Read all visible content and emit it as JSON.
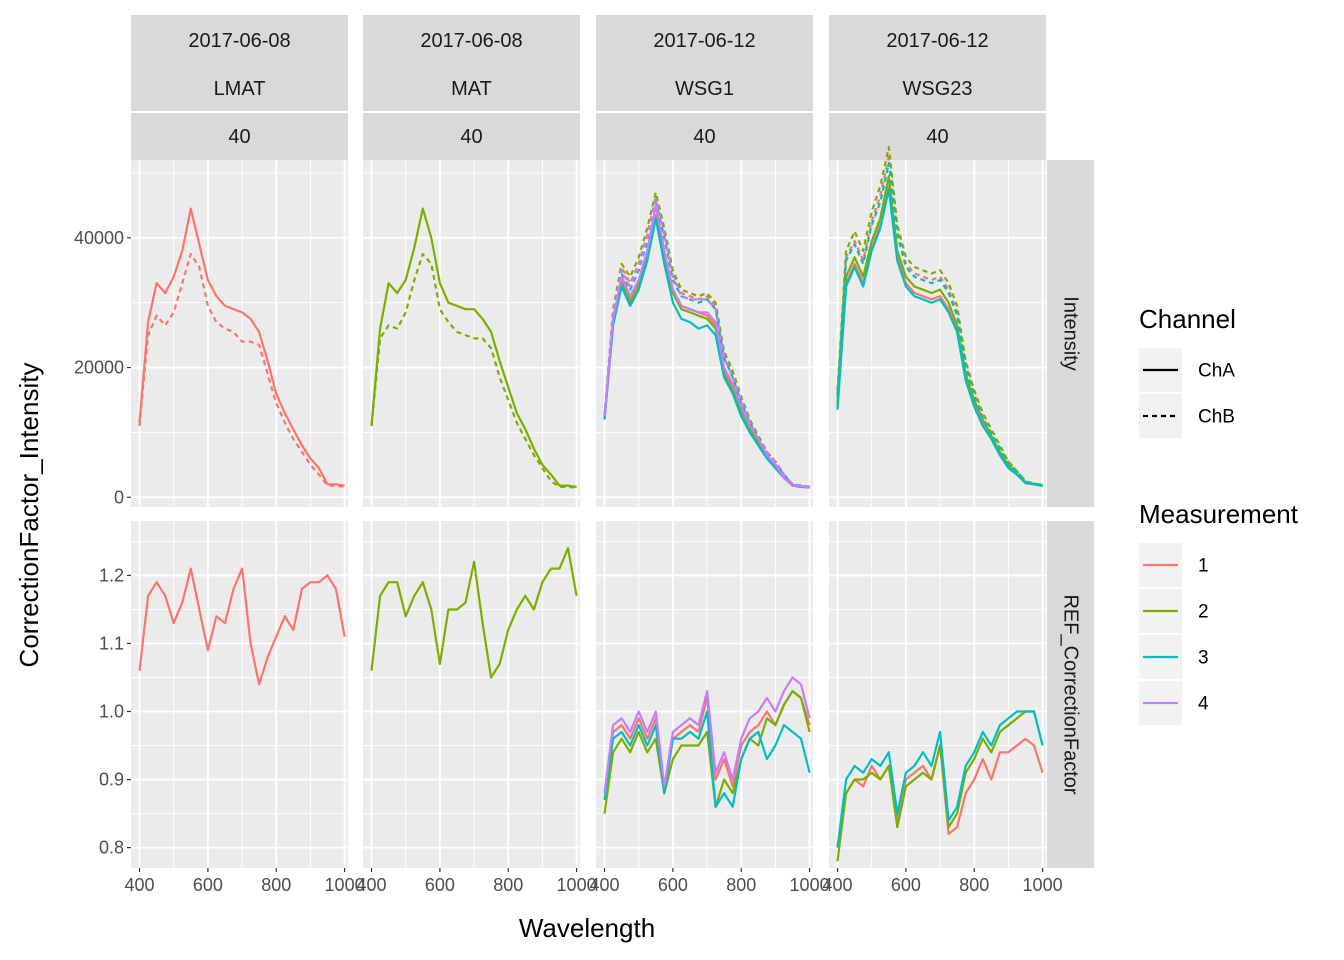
{
  "chart_data": {
    "type": "line",
    "xlabel": "Wavelength",
    "ylabel": "CorrectionFactor_Intensity",
    "x_ticks": [
      400,
      600,
      800,
      1000
    ],
    "x_tick_labels": [
      "400",
      "600",
      "800",
      "1000"
    ],
    "xlim": [
      375,
      1010
    ],
    "grid": true,
    "facet_columns": [
      {
        "date": "2017-06-08",
        "site": "LMAT",
        "value": "40"
      },
      {
        "date": "2017-06-08",
        "site": "MAT",
        "value": "40"
      },
      {
        "date": "2017-06-12",
        "site": "WSG1",
        "value": "40"
      },
      {
        "date": "2017-06-12",
        "site": "WSG23",
        "value": "40"
      }
    ],
    "facet_rows": [
      {
        "label": "Intensity",
        "ylim": [
          -1500,
          52000
        ],
        "ticks": [
          0,
          20000,
          40000
        ],
        "tick_labels": [
          "0",
          "20000",
          "40000"
        ]
      },
      {
        "label": "REF_CorrectionFactor",
        "ylim": [
          0.77,
          1.28
        ],
        "ticks": [
          0.8,
          0.9,
          1.0,
          1.1,
          1.2
        ],
        "tick_labels": [
          "0.8",
          "0.9",
          "1.0",
          "1.1",
          "1.2"
        ]
      }
    ],
    "x": [
      400,
      425,
      450,
      475,
      500,
      525,
      550,
      575,
      600,
      625,
      650,
      675,
      700,
      725,
      750,
      775,
      800,
      825,
      850,
      875,
      900,
      925,
      950,
      975,
      1000
    ],
    "legend": {
      "channel": {
        "title": "Channel",
        "entries": [
          {
            "label": "ChA",
            "dash": "solid"
          },
          {
            "label": "ChB",
            "dash": "dashed"
          }
        ]
      },
      "measurement": {
        "title": "Measurement",
        "entries": [
          {
            "label": "1",
            "color": "#F8766D"
          },
          {
            "label": "2",
            "color": "#7CAE00"
          },
          {
            "label": "3",
            "color": "#00BFC4"
          },
          {
            "label": "4",
            "color": "#C77CFF"
          }
        ]
      }
    },
    "series": [
      {
        "column": 0,
        "row": 0,
        "measurement": "1",
        "channel": "ChA",
        "values": [
          11500,
          27000,
          33000,
          31500,
          34000,
          38000,
          44500,
          39000,
          33500,
          31000,
          29500,
          29000,
          28500,
          27500,
          25500,
          21000,
          16000,
          13000,
          10500,
          8000,
          6000,
          4500,
          2000,
          2000,
          1800
        ]
      },
      {
        "column": 0,
        "row": 0,
        "measurement": "1",
        "channel": "ChB",
        "values": [
          11000,
          25000,
          28000,
          26500,
          28500,
          33000,
          37500,
          35500,
          29500,
          27000,
          26000,
          25500,
          24000,
          24000,
          23500,
          19000,
          14500,
          11500,
          9000,
          7000,
          5000,
          3500,
          1800,
          1800,
          1600
        ]
      },
      {
        "column": 0,
        "row": 1,
        "measurement": "1",
        "channel": "ChA",
        "values": [
          1.06,
          1.17,
          1.19,
          1.17,
          1.13,
          1.16,
          1.21,
          1.15,
          1.09,
          1.14,
          1.13,
          1.18,
          1.21,
          1.1,
          1.04,
          1.08,
          1.11,
          1.14,
          1.12,
          1.18,
          1.19,
          1.19,
          1.2,
          1.18,
          1.11
        ]
      },
      {
        "column": 1,
        "row": 0,
        "measurement": "2",
        "channel": "ChA",
        "values": [
          11000,
          26000,
          33000,
          31500,
          33500,
          38500,
          44500,
          40000,
          33000,
          30000,
          29500,
          29000,
          29000,
          27500,
          25500,
          21000,
          17000,
          13000,
          10500,
          7500,
          5000,
          3500,
          1800,
          1800,
          1600
        ]
      },
      {
        "column": 1,
        "row": 0,
        "measurement": "2",
        "channel": "ChB",
        "values": [
          11000,
          24500,
          26500,
          26000,
          28500,
          33500,
          37500,
          36000,
          29000,
          27000,
          25500,
          25000,
          24500,
          24500,
          23000,
          18500,
          15000,
          11500,
          9000,
          6500,
          4500,
          2500,
          1600,
          1600,
          1500
        ]
      },
      {
        "column": 1,
        "row": 1,
        "measurement": "2",
        "channel": "ChA",
        "values": [
          1.06,
          1.17,
          1.19,
          1.19,
          1.14,
          1.17,
          1.19,
          1.15,
          1.07,
          1.15,
          1.15,
          1.16,
          1.22,
          1.13,
          1.05,
          1.07,
          1.12,
          1.15,
          1.17,
          1.15,
          1.19,
          1.21,
          1.21,
          1.24,
          1.17
        ]
      },
      {
        "column": 2,
        "row": 0,
        "measurement": "1",
        "channel": "ChA",
        "values": [
          12000,
          27000,
          33500,
          30500,
          33000,
          37000,
          43500,
          37500,
          32000,
          29500,
          29000,
          28500,
          28000,
          26500,
          19500,
          17000,
          13500,
          10500,
          8500,
          6500,
          5000,
          3000,
          1800,
          1700,
          1500
        ]
      },
      {
        "column": 2,
        "row": 0,
        "measurement": "1",
        "channel": "ChB",
        "values": [
          12500,
          28500,
          35500,
          33000,
          36000,
          40500,
          46500,
          41000,
          34500,
          31500,
          31000,
          30500,
          31000,
          29500,
          22000,
          19000,
          15000,
          11500,
          9500,
          7000,
          5500,
          3500,
          2000,
          1800,
          1600
        ]
      },
      {
        "column": 2,
        "row": 0,
        "measurement": "2",
        "channel": "ChA",
        "values": [
          12000,
          27000,
          33000,
          30000,
          32500,
          37000,
          43000,
          37000,
          31500,
          29000,
          28500,
          28000,
          27500,
          26000,
          19000,
          16500,
          13000,
          10500,
          8500,
          6500,
          4500,
          3000,
          1800,
          1600,
          1500
        ]
      },
      {
        "column": 2,
        "row": 0,
        "measurement": "2",
        "channel": "ChB",
        "values": [
          12500,
          29000,
          36000,
          34000,
          37000,
          41500,
          47000,
          41500,
          35000,
          32000,
          31500,
          31000,
          31500,
          30000,
          22500,
          19500,
          15500,
          12000,
          9500,
          7000,
          5500,
          3500,
          2000,
          1800,
          1600
        ]
      },
      {
        "column": 2,
        "row": 0,
        "measurement": "3",
        "channel": "ChA",
        "values": [
          12000,
          26500,
          32500,
          29500,
          32000,
          36500,
          43000,
          36000,
          30000,
          27500,
          27000,
          26000,
          26500,
          25000,
          18500,
          16000,
          12500,
          10000,
          8000,
          6000,
          4500,
          3000,
          1800,
          1600,
          1500
        ]
      },
      {
        "column": 2,
        "row": 0,
        "measurement": "3",
        "channel": "ChB",
        "values": [
          12500,
          28000,
          34500,
          32000,
          35000,
          39500,
          45500,
          40000,
          33500,
          31000,
          30500,
          30000,
          30500,
          29000,
          21500,
          18500,
          14500,
          11500,
          9000,
          6500,
          5000,
          3500,
          1900,
          1700,
          1500
        ]
      },
      {
        "column": 2,
        "row": 0,
        "measurement": "4",
        "channel": "ChA",
        "values": [
          12500,
          27500,
          34000,
          31000,
          33500,
          38000,
          45000,
          38000,
          32000,
          29500,
          29000,
          28500,
          28500,
          27000,
          20000,
          17500,
          14000,
          11000,
          9000,
          6500,
          5000,
          3000,
          1800,
          1700,
          1500
        ]
      },
      {
        "column": 2,
        "row": 0,
        "measurement": "4",
        "channel": "ChB",
        "values": [
          12500,
          28500,
          35000,
          32500,
          35500,
          40000,
          46000,
          40500,
          34000,
          31000,
          30500,
          30500,
          30500,
          29000,
          21500,
          18500,
          15000,
          11500,
          9000,
          7000,
          5500,
          3500,
          2000,
          1800,
          1600
        ]
      },
      {
        "column": 2,
        "row": 1,
        "measurement": "1",
        "channel": "ChA",
        "values": [
          0.88,
          0.97,
          0.98,
          0.96,
          0.99,
          0.96,
          0.99,
          0.88,
          0.96,
          0.97,
          0.98,
          0.97,
          1.02,
          0.9,
          0.93,
          0.89,
          0.95,
          0.97,
          0.98,
          1.0,
          0.98,
          1.01,
          1.03,
          1.02,
          0.98
        ]
      },
      {
        "column": 2,
        "row": 1,
        "measurement": "2",
        "channel": "ChA",
        "values": [
          0.85,
          0.94,
          0.96,
          0.94,
          0.97,
          0.94,
          0.96,
          0.88,
          0.93,
          0.95,
          0.95,
          0.95,
          0.97,
          0.86,
          0.9,
          0.88,
          0.93,
          0.96,
          0.95,
          0.99,
          0.98,
          1.01,
          1.03,
          1.02,
          0.97
        ]
      },
      {
        "column": 2,
        "row": 1,
        "measurement": "3",
        "channel": "ChA",
        "values": [
          0.87,
          0.96,
          0.97,
          0.95,
          0.98,
          0.95,
          0.98,
          0.88,
          0.96,
          0.96,
          0.97,
          0.96,
          1.0,
          0.86,
          0.88,
          0.86,
          0.93,
          0.96,
          0.97,
          0.93,
          0.95,
          0.98,
          0.97,
          0.96,
          0.91
        ]
      },
      {
        "column": 2,
        "row": 1,
        "measurement": "4",
        "channel": "ChA",
        "values": [
          0.88,
          0.98,
          0.99,
          0.97,
          1.0,
          0.97,
          1.0,
          0.89,
          0.97,
          0.98,
          0.99,
          0.98,
          1.03,
          0.91,
          0.94,
          0.9,
          0.96,
          0.99,
          1.0,
          1.02,
          1.0,
          1.03,
          1.05,
          1.04,
          0.99
        ]
      },
      {
        "column": 3,
        "row": 0,
        "measurement": "1",
        "channel": "ChA",
        "values": [
          14000,
          33000,
          36000,
          33000,
          38500,
          42000,
          48000,
          37000,
          33000,
          31500,
          31000,
          30500,
          31000,
          29000,
          26000,
          18500,
          14500,
          11500,
          9000,
          6500,
          5000,
          3500,
          2200,
          2000,
          1800
        ]
      },
      {
        "column": 3,
        "row": 0,
        "measurement": "1",
        "channel": "ChB",
        "values": [
          16000,
          37000,
          39500,
          36500,
          42500,
          46500,
          52500,
          41000,
          36000,
          34500,
          34000,
          33500,
          34000,
          32000,
          28500,
          20500,
          16000,
          12500,
          10000,
          7500,
          5500,
          4000,
          2400,
          2100,
          1900
        ]
      },
      {
        "column": 3,
        "row": 0,
        "measurement": "2",
        "channel": "ChA",
        "values": [
          14500,
          34000,
          37000,
          34000,
          39500,
          43000,
          49500,
          38000,
          34000,
          32500,
          32000,
          31500,
          32000,
          30000,
          26500,
          19000,
          15000,
          12000,
          9500,
          7000,
          5000,
          3500,
          2200,
          2000,
          1800
        ]
      },
      {
        "column": 3,
        "row": 0,
        "measurement": "2",
        "channel": "ChB",
        "values": [
          16500,
          38000,
          41000,
          38000,
          44000,
          48000,
          54000,
          42000,
          37000,
          35500,
          35000,
          34500,
          35000,
          33000,
          29500,
          21000,
          16500,
          13000,
          10500,
          8000,
          5500,
          4000,
          2500,
          2100,
          1900
        ]
      },
      {
        "column": 3,
        "row": 0,
        "measurement": "3",
        "channel": "ChA",
        "values": [
          13500,
          32500,
          35500,
          32500,
          38000,
          41500,
          47500,
          36500,
          32500,
          31000,
          30500,
          30000,
          30500,
          28500,
          25500,
          18000,
          14000,
          11000,
          9000,
          6500,
          4500,
          3500,
          2200,
          2000,
          1700
        ]
      },
      {
        "column": 3,
        "row": 0,
        "measurement": "3",
        "channel": "ChB",
        "values": [
          15500,
          36500,
          39000,
          36000,
          42000,
          45500,
          51500,
          40500,
          35500,
          34000,
          33500,
          33000,
          33500,
          31500,
          28000,
          20000,
          15500,
          12000,
          10000,
          7500,
          5000,
          4000,
          2400,
          2100,
          1900
        ]
      },
      {
        "column": 3,
        "row": 1,
        "measurement": "1",
        "channel": "ChA",
        "values": [
          0.8,
          0.88,
          0.9,
          0.89,
          0.92,
          0.9,
          0.92,
          0.84,
          0.9,
          0.91,
          0.92,
          0.9,
          0.95,
          0.82,
          0.83,
          0.88,
          0.9,
          0.93,
          0.9,
          0.94,
          0.94,
          0.95,
          0.96,
          0.95,
          0.91
        ]
      },
      {
        "column": 3,
        "row": 1,
        "measurement": "2",
        "channel": "ChA",
        "values": [
          0.78,
          0.88,
          0.9,
          0.9,
          0.91,
          0.9,
          0.92,
          0.83,
          0.89,
          0.9,
          0.91,
          0.9,
          0.95,
          0.83,
          0.85,
          0.91,
          0.93,
          0.96,
          0.94,
          0.97,
          0.98,
          0.99,
          1.0,
          1.0,
          0.95
        ]
      },
      {
        "column": 3,
        "row": 1,
        "measurement": "3",
        "channel": "ChA",
        "values": [
          0.8,
          0.9,
          0.92,
          0.91,
          0.93,
          0.92,
          0.94,
          0.85,
          0.91,
          0.92,
          0.94,
          0.92,
          0.97,
          0.84,
          0.86,
          0.92,
          0.94,
          0.97,
          0.95,
          0.98,
          0.99,
          1.0,
          1.0,
          1.0,
          0.95
        ]
      }
    ]
  }
}
